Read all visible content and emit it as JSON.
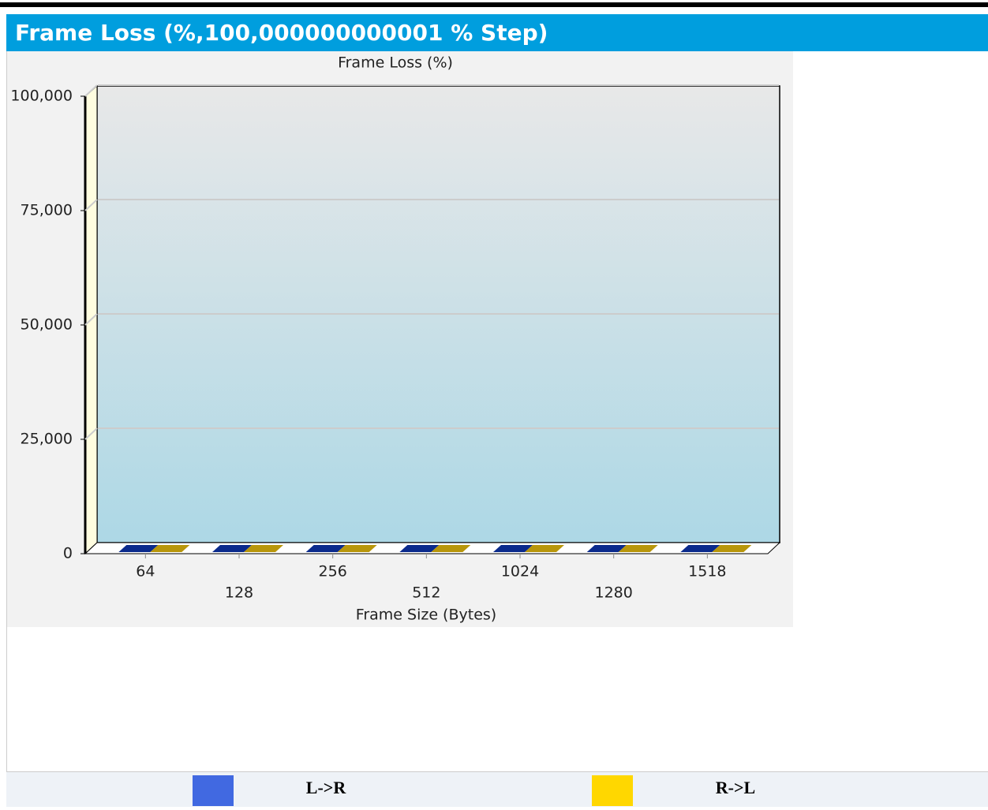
{
  "header": {
    "title": "Frame Loss (%,100,000000000001 % Step)"
  },
  "chart_data": {
    "type": "bar",
    "title": "Frame Loss (%)",
    "x_label": "Frame Size (Bytes)",
    "categories": [
      "64",
      "128",
      "256",
      "512",
      "1024",
      "1280",
      "1518"
    ],
    "series": [
      {
        "name": "L->R",
        "color": "#4169e1",
        "bar_color": "#0a2a8c",
        "values": [
          0,
          0,
          0,
          0,
          0,
          0,
          0
        ]
      },
      {
        "name": "R->L",
        "color": "#ffd700",
        "bar_color": "#b8960b",
        "values": [
          0,
          0,
          0,
          0,
          0,
          0,
          0
        ]
      }
    ],
    "ylim": [
      0,
      100
    ],
    "yticks": [
      0,
      {
        "value": 25,
        "label": "25,000"
      },
      {
        "value": 50,
        "label": "50,000"
      },
      {
        "value": 75,
        "label": "75,000"
      },
      {
        "value": 100,
        "label": "100,000"
      }
    ],
    "grid": true
  }
}
